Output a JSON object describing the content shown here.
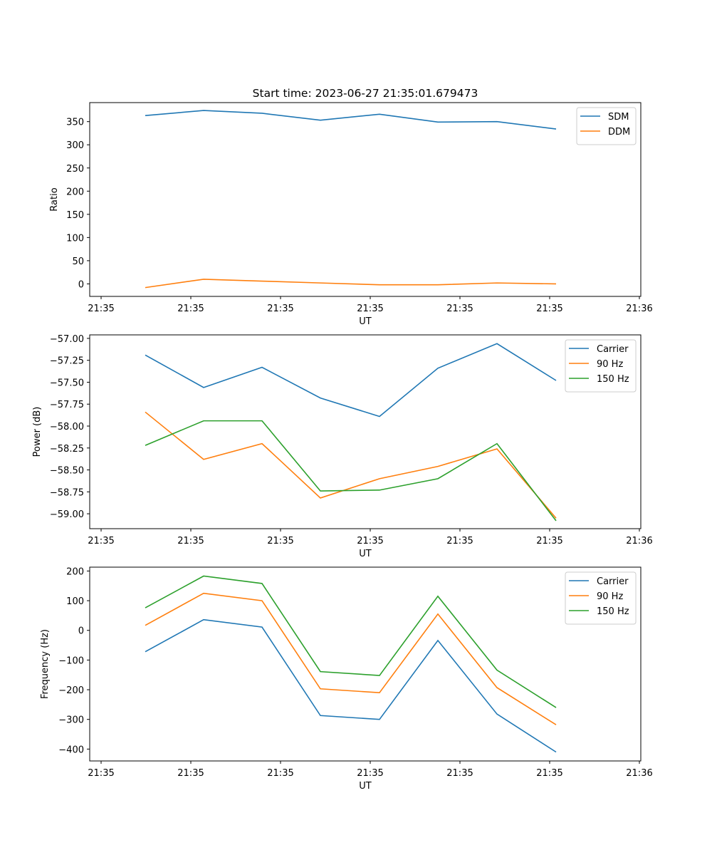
{
  "title": "Start time: 2023-06-27 21:35:01.679473",
  "colors": {
    "series1": "#1f77b4",
    "series2": "#ff7f0e",
    "series3": "#2ca02c",
    "frame": "#000000",
    "legend_border": "#cccccc"
  },
  "chart_data": [
    {
      "type": "line",
      "title": "Start time: 2023-06-27 21:35:01.679473",
      "xlabel": "UT",
      "ylabel": "Ratio",
      "x_tick_labels": [
        "21:35",
        "21:35",
        "21:35",
        "21:35",
        "21:35",
        "21:35",
        "21:36"
      ],
      "y_ticks": [
        0,
        50,
        100,
        150,
        200,
        250,
        300,
        350
      ],
      "ylim": [
        -27,
        391
      ],
      "legend_position": "top-right",
      "series": [
        {
          "name": "SDM",
          "color": "#1f77b4",
          "values": [
            363,
            374,
            368,
            353,
            366,
            349,
            350,
            334
          ]
        },
        {
          "name": "DDM",
          "color": "#ff7f0e",
          "values": [
            -8,
            10,
            6,
            2,
            -2,
            -2,
            2,
            0
          ]
        }
      ]
    },
    {
      "type": "line",
      "title": "",
      "xlabel": "UT",
      "ylabel": "Power (dB)",
      "x_tick_labels": [
        "21:35",
        "21:35",
        "21:35",
        "21:35",
        "21:35",
        "21:35",
        "21:36"
      ],
      "y_ticks": [
        -59.0,
        -58.75,
        -58.5,
        -58.25,
        -58.0,
        -57.75,
        -57.5,
        -57.25,
        -57.0
      ],
      "y_tick_labels": [
        "−59.00",
        "−58.75",
        "−58.50",
        "−58.25",
        "−58.00",
        "−57.75",
        "−57.50",
        "−57.25",
        "−57.00"
      ],
      "ylim": [
        -59.17,
        -56.96
      ],
      "legend_position": "top-right",
      "series": [
        {
          "name": "Carrier",
          "color": "#1f77b4",
          "values": [
            -57.19,
            -57.56,
            -57.33,
            -57.68,
            -57.89,
            -57.34,
            -57.06,
            -57.48
          ]
        },
        {
          "name": "90 Hz",
          "color": "#ff7f0e",
          "values": [
            -57.84,
            -58.38,
            -58.2,
            -58.82,
            -58.6,
            -58.46,
            -58.26,
            -59.05
          ]
        },
        {
          "name": "150 Hz",
          "color": "#2ca02c",
          "values": [
            -58.22,
            -57.94,
            -57.94,
            -58.74,
            -58.73,
            -58.6,
            -58.2,
            -59.08
          ]
        }
      ]
    },
    {
      "type": "line",
      "title": "",
      "xlabel": "UT",
      "ylabel": "Frequency (Hz)",
      "x_tick_labels": [
        "21:35",
        "21:35",
        "21:35",
        "21:35",
        "21:35",
        "21:35",
        "21:36"
      ],
      "y_ticks": [
        -400,
        -300,
        -200,
        -100,
        0,
        100,
        200
      ],
      "y_tick_labels": [
        "−400",
        "−300",
        "−200",
        "−100",
        "0",
        "100",
        "200"
      ],
      "ylim": [
        -440,
        213
      ],
      "legend_position": "top-right",
      "series": [
        {
          "name": "Carrier",
          "color": "#1f77b4",
          "values": [
            -72,
            36,
            11,
            -287,
            -300,
            -34,
            -282,
            -410
          ]
        },
        {
          "name": "90 Hz",
          "color": "#ff7f0e",
          "values": [
            17,
            125,
            100,
            -197,
            -210,
            55,
            -193,
            -318
          ]
        },
        {
          "name": "150 Hz",
          "color": "#2ca02c",
          "values": [
            76,
            183,
            158,
            -139,
            -152,
            115,
            -134,
            -260
          ]
        }
      ]
    }
  ]
}
